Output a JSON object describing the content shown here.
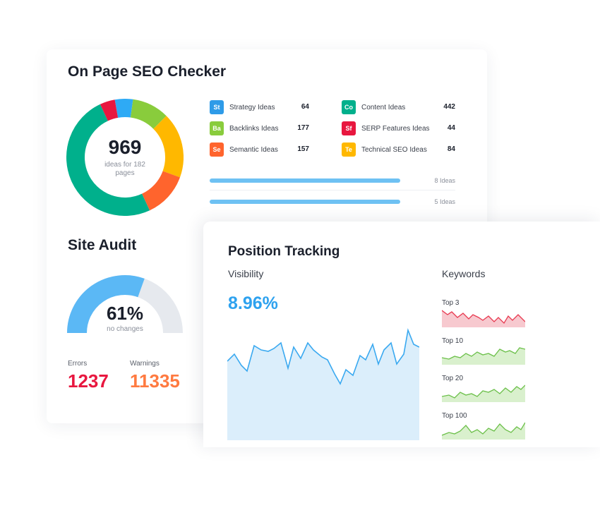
{
  "seo": {
    "title": "On Page SEO Checker",
    "total": "969",
    "total_sub": "ideas for 182 pages",
    "donut_colors": [
      "#00b08c",
      "#ff642d",
      "#ffb800",
      "#89cc3c",
      "#2eaaf5",
      "#e8173f"
    ],
    "ideas": [
      {
        "badge": "St",
        "label": "Strategy Ideas",
        "count": "64",
        "color": "#2e9be8"
      },
      {
        "badge": "Ba",
        "label": "Backlinks Ideas",
        "count": "177",
        "color": "#89cc3c"
      },
      {
        "badge": "Se",
        "label": "Semantic Ideas",
        "count": "157",
        "color": "#ff642d"
      },
      {
        "badge": "Co",
        "label": "Content Ideas",
        "count": "442",
        "color": "#00b08c"
      },
      {
        "badge": "Sf",
        "label": "SERP Features Ideas",
        "count": "44",
        "color": "#e8173f"
      },
      {
        "badge": "Te",
        "label": "Technical SEO Ideas",
        "count": "84",
        "color": "#ffb800"
      }
    ],
    "bars": [
      {
        "note": "8 Ideas"
      },
      {
        "note": "5 Ideas"
      }
    ]
  },
  "audit": {
    "title": "Site Audit",
    "percent": "61%",
    "percent_value": 0.61,
    "sub": "no changes",
    "errors_label": "Errors",
    "errors_value": "1237",
    "warnings_label": "Warnings",
    "warnings_value": "11335",
    "gauge_color": "#5bb8f5",
    "gauge_track": "#e6e9ee"
  },
  "tracking": {
    "title": "Position Tracking",
    "visibility_label": "Visibility",
    "visibility_value": "8.96%",
    "keywords_label": "Keywords",
    "keywords": [
      {
        "label": "Top 3",
        "color": "#e8384f",
        "fill": "#f7c9cf"
      },
      {
        "label": "Top 10",
        "color": "#6cc04a",
        "fill": "#d9f0cd"
      },
      {
        "label": "Top 20",
        "color": "#6cc04a",
        "fill": "#d9f0cd"
      },
      {
        "label": "Top 100",
        "color": "#6cc04a",
        "fill": "#d9f0cd"
      }
    ]
  }
}
